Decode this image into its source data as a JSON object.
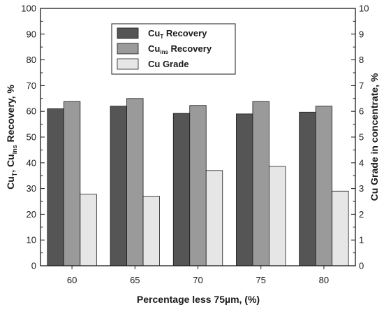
{
  "chart_data": {
    "type": "bar",
    "categories": [
      "60",
      "65",
      "70",
      "75",
      "80"
    ],
    "series": [
      {
        "name_main": "Cu",
        "name_sub": "T",
        "name_rest": " Recovery",
        "axis": "left",
        "color": "#555555",
        "values": [
          61,
          62,
          59.2,
          59,
          59.7
        ]
      },
      {
        "name_main": "Cu",
        "name_sub": "ins",
        "name_rest": " Recovery",
        "axis": "left",
        "color": "#9a9a9a",
        "values": [
          63.8,
          65,
          62.3,
          63.8,
          62
        ]
      },
      {
        "name_main": "Cu Grade",
        "name_sub": "",
        "name_rest": "",
        "axis": "right",
        "color": "#e6e6e6",
        "values": [
          2.78,
          2.7,
          3.7,
          3.86,
          2.9
        ]
      }
    ],
    "xlabel": "Percentage less 75µm,  (%)",
    "ylabel_left": {
      "p1": "Cu",
      "sub1": "T",
      "p2": ", Cu",
      "sub2": "ins",
      "p3": " Recovery, %"
    },
    "ylabel_right": "Cu Grade in concentrate, %",
    "ylim_left": [
      0,
      100
    ],
    "ylim_right": [
      0,
      10
    ],
    "yticks_left": [
      "0",
      "10",
      "20",
      "30",
      "40",
      "50",
      "60",
      "70",
      "80",
      "90",
      "100"
    ],
    "yticks_right": [
      "0",
      "1",
      "2",
      "3",
      "4",
      "5",
      "6",
      "7",
      "8",
      "9",
      "10"
    ],
    "legend_position": "top-center",
    "grid": false
  }
}
